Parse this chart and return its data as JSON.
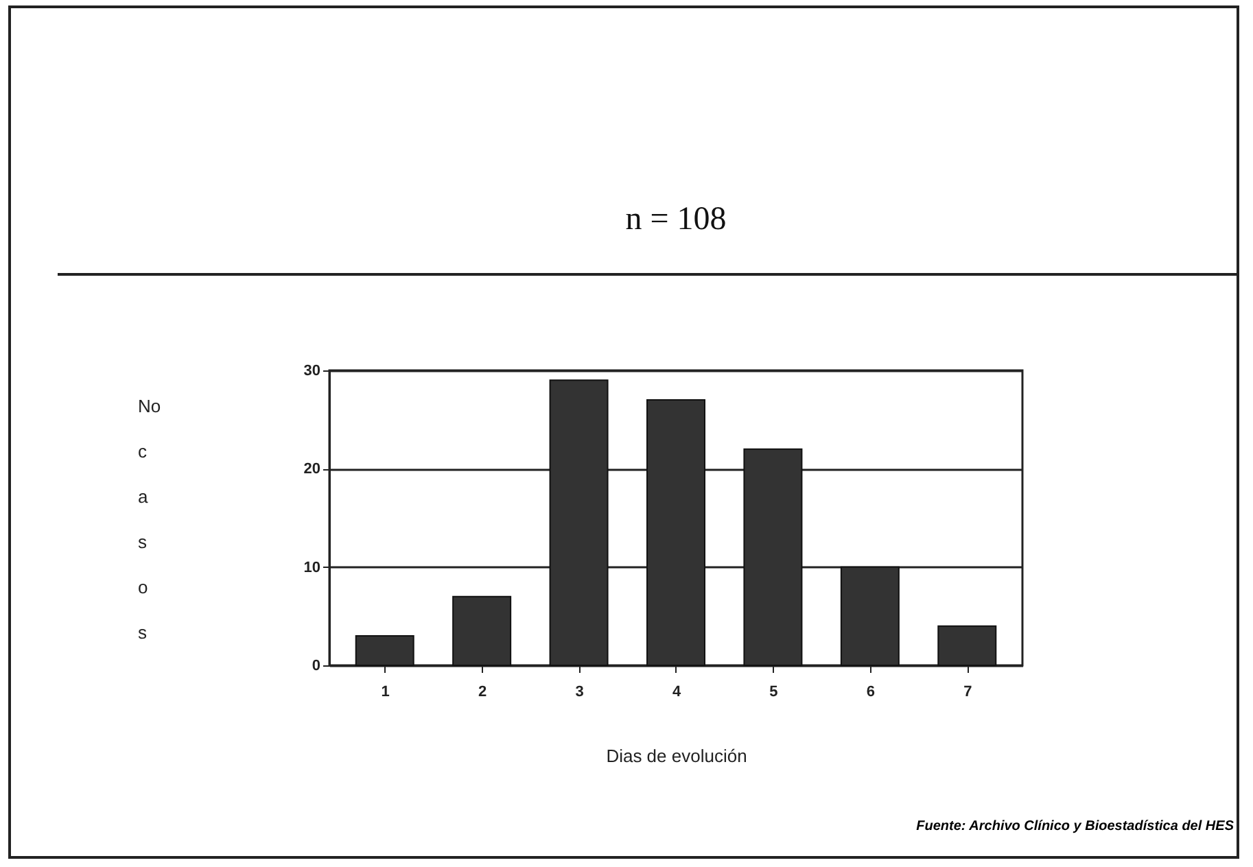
{
  "chart_data": {
    "type": "bar",
    "title": "n = 108",
    "xlabel": "Dias de evolución",
    "ylabel": "No casos",
    "categories": [
      "1",
      "2",
      "3",
      "4",
      "5",
      "6",
      "7"
    ],
    "values": [
      3,
      7,
      29,
      27,
      22,
      10,
      4
    ],
    "color": "#333333",
    "ylim": [
      0,
      30
    ],
    "yticks": [
      0,
      10,
      20,
      30
    ],
    "grid": "y",
    "annotations": [
      "Fuente: Archivo Clínico y Bioestadística del HES"
    ]
  }
}
